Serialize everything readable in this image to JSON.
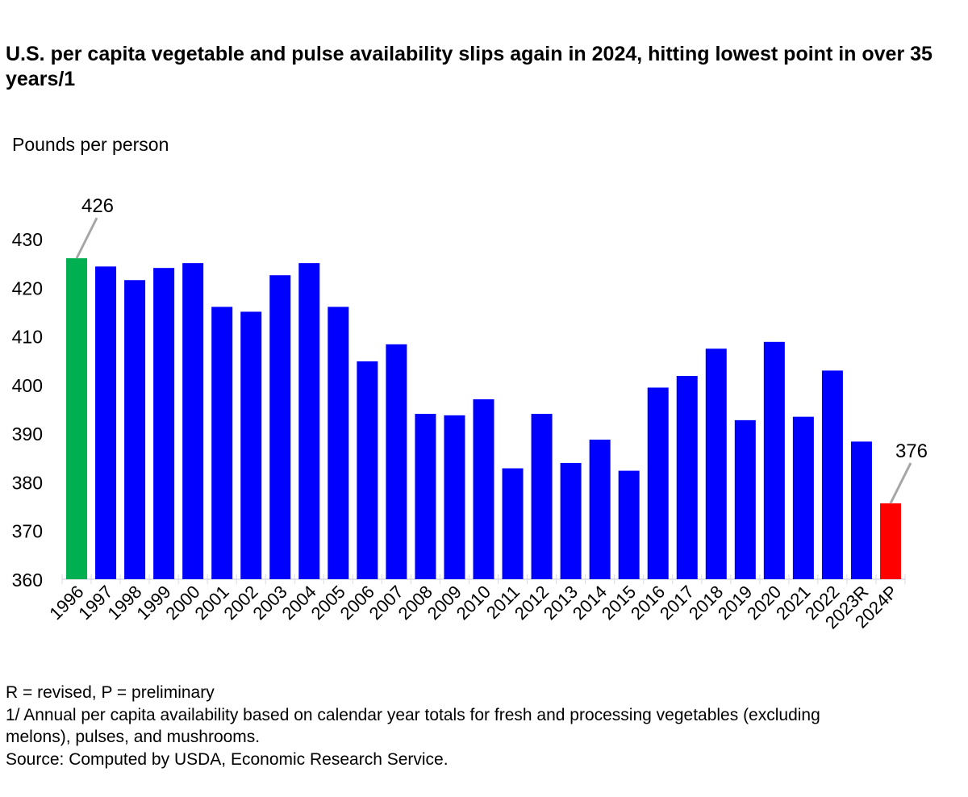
{
  "chart_data": {
    "type": "bar",
    "title": "U.S. per capita vegetable and pulse availability slips again in 2024, hitting lowest point in over 35 years/1",
    "ylabel": "Pounds per person",
    "xlabel": "",
    "ylim": [
      360,
      430
    ],
    "yticks": [
      360,
      370,
      380,
      390,
      400,
      410,
      420,
      430
    ],
    "grid": false,
    "categories": [
      "1996",
      "1997",
      "1998",
      "1999",
      "2000",
      "2001",
      "2002",
      "2003",
      "2004",
      "2005",
      "2006",
      "2007",
      "2008",
      "2009",
      "2010",
      "2011",
      "2012",
      "2013",
      "2014",
      "2015",
      "2016",
      "2017",
      "2018",
      "2019",
      "2020",
      "2021",
      "2022",
      "2023R",
      "2024P"
    ],
    "values": [
      426,
      424.3,
      421.5,
      424,
      425,
      416,
      415,
      422.5,
      425,
      416,
      404.8,
      408.3,
      394,
      393.7,
      397,
      382.8,
      394,
      383.9,
      388.7,
      382.3,
      399.4,
      401.8,
      407.4,
      392.7,
      408.8,
      393.4,
      402.9,
      388.3,
      375.6
    ],
    "colors": {
      "default": "#0000ff",
      "highlight_max": "#00b050",
      "highlight_last": "#ff0000",
      "callout_line": "#a6a6a6",
      "axis": "#d9d9e6"
    },
    "annotations": [
      {
        "category": "1996",
        "text": "426"
      },
      {
        "category": "2024P",
        "text": "376"
      }
    ]
  },
  "footnotes": {
    "legend_note": "R = revised, P = preliminary",
    "note1_line1": "1/ Annual per capita availability based on calendar year totals for fresh and processing vegetables (excluding",
    "note1_line2": "melons), pulses, and mushrooms.",
    "source": "Source: Computed by USDA, Economic Research Service."
  }
}
